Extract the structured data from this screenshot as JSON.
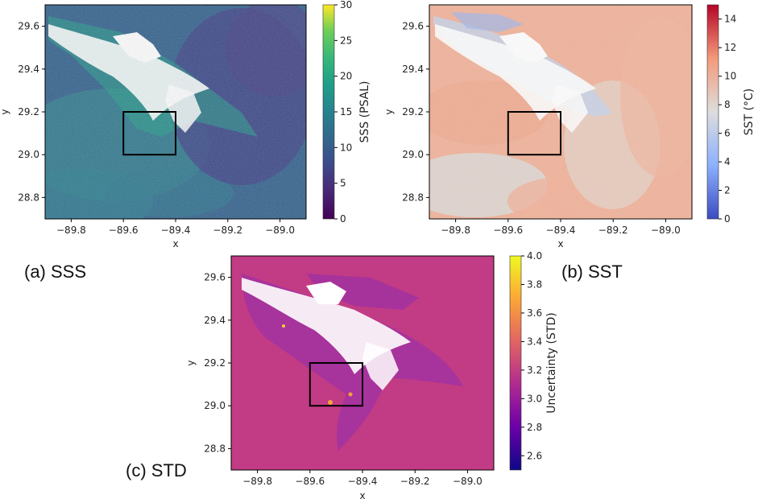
{
  "chart_data": [
    {
      "id": "sss",
      "type": "heatmap",
      "caption": "(a) SSS",
      "xlabel": "x",
      "ylabel": "y",
      "xlim": [
        -89.9,
        -88.9
      ],
      "ylim": [
        28.7,
        29.7
      ],
      "xticks": [
        -89.8,
        -89.6,
        -89.4,
        -89.2,
        -89.0
      ],
      "xtick_labels": [
        "−89.8",
        "−89.6",
        "−89.4",
        "−89.2",
        "−89.0"
      ],
      "yticks": [
        28.8,
        29.0,
        29.2,
        29.4,
        29.6
      ],
      "ytick_labels": [
        "28.8",
        "29.0",
        "29.2",
        "29.4",
        "29.6"
      ],
      "colorbar": {
        "label": "SSS (PSAL)",
        "range": [
          0,
          30
        ],
        "ticks": [
          0,
          5,
          10,
          15,
          20,
          25,
          30
        ],
        "tick_labels": [
          "0",
          "5",
          "10",
          "15",
          "20",
          "25",
          "30"
        ],
        "colormap": "viridis"
      },
      "box": {
        "x0": -89.6,
        "x1": -89.4,
        "y0": 29.0,
        "y1": 29.2
      }
    },
    {
      "id": "sst",
      "type": "heatmap",
      "caption": "(b) SST",
      "xlabel": "x",
      "ylabel": "y",
      "xlim": [
        -89.9,
        -88.9
      ],
      "ylim": [
        28.7,
        29.7
      ],
      "xticks": [
        -89.8,
        -89.6,
        -89.4,
        -89.2,
        -89.0
      ],
      "xtick_labels": [
        "−89.8",
        "−89.6",
        "−89.4",
        "−89.2",
        "−89.0"
      ],
      "yticks": [
        28.8,
        29.0,
        29.2,
        29.4,
        29.6
      ],
      "ytick_labels": [
        "28.8",
        "29.0",
        "29.2",
        "29.4",
        "29.6"
      ],
      "colorbar": {
        "label": "SST (°C)",
        "range": [
          0,
          15
        ],
        "ticks": [
          0,
          2,
          4,
          6,
          8,
          10,
          12,
          14
        ],
        "tick_labels": [
          "0",
          "2",
          "4",
          "6",
          "8",
          "10",
          "12",
          "14"
        ],
        "colormap": "coolwarm"
      },
      "box": {
        "x0": -89.6,
        "x1": -89.4,
        "y0": 29.0,
        "y1": 29.2
      }
    },
    {
      "id": "std",
      "type": "heatmap",
      "caption": "(c) STD",
      "xlabel": "x",
      "ylabel": "y",
      "xlim": [
        -89.9,
        -88.9
      ],
      "ylim": [
        28.7,
        29.7
      ],
      "xticks": [
        -89.8,
        -89.6,
        -89.4,
        -89.2,
        -89.0
      ],
      "xtick_labels": [
        "−89.8",
        "−89.6",
        "−89.4",
        "−89.2",
        "−89.0"
      ],
      "yticks": [
        28.8,
        29.0,
        29.2,
        29.4,
        29.6
      ],
      "ytick_labels": [
        "28.8",
        "29.0",
        "29.2",
        "29.4",
        "29.6"
      ],
      "colorbar": {
        "label": "Uncertainty (STD)",
        "range": [
          2.5,
          4.0
        ],
        "ticks": [
          2.6,
          2.8,
          3.0,
          3.2,
          3.4,
          3.6,
          3.8,
          4.0
        ],
        "tick_labels": [
          "2.6",
          "2.8",
          "3.0",
          "3.2",
          "3.4",
          "3.6",
          "3.8",
          "4.0"
        ],
        "colormap": "plasma"
      },
      "box": {
        "x0": -89.6,
        "x1": -89.4,
        "y0": 29.0,
        "y1": 29.2
      }
    }
  ]
}
